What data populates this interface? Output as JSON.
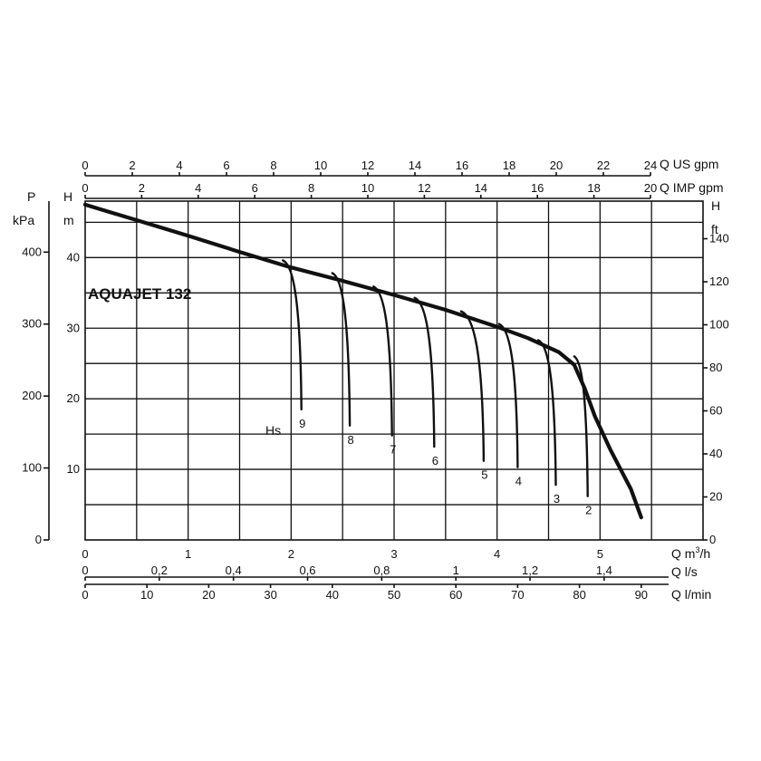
{
  "chart_data": {
    "type": "line",
    "title": "AQUAJET 132",
    "x_axes": [
      {
        "label": "Q m³/h",
        "label_base": "Q m",
        "label_sup": "3",
        "label_tail": "/h",
        "ticks": [
          "0",
          "1",
          "2",
          "3",
          "4",
          "5"
        ],
        "values": [
          0,
          1,
          2,
          3,
          4,
          5
        ]
      },
      {
        "label": "Q l/s",
        "ticks": [
          "0",
          "0,2",
          "0,4",
          "0,6",
          "0,8",
          "1",
          "1,2",
          "1,4"
        ],
        "values": [
          0,
          0.2,
          0.4,
          0.6,
          0.8,
          1,
          1.2,
          1.4
        ]
      },
      {
        "label": "Q l/min",
        "ticks": [
          "0",
          "10",
          "20",
          "30",
          "40",
          "50",
          "60",
          "70",
          "80",
          "90"
        ],
        "values": [
          0,
          10,
          20,
          30,
          40,
          50,
          60,
          70,
          80,
          90
        ]
      }
    ],
    "top_axes": [
      {
        "label": "Q US gpm",
        "ticks": [
          "0",
          "2",
          "4",
          "6",
          "8",
          "10",
          "12",
          "14",
          "16",
          "18",
          "20",
          "22",
          "24"
        ],
        "values": [
          0,
          2,
          4,
          6,
          8,
          10,
          12,
          14,
          16,
          18,
          20,
          22,
          24
        ]
      },
      {
        "label": "Q IMP gpm",
        "ticks": [
          "0",
          "2",
          "4",
          "6",
          "8",
          "10",
          "12",
          "14",
          "16",
          "18",
          "20"
        ],
        "values": [
          0,
          2,
          4,
          6,
          8,
          10,
          12,
          14,
          16,
          18,
          20
        ]
      }
    ],
    "y_axes": [
      {
        "label_top": "P",
        "label_bottom": "kPa",
        "ticks": [
          "0",
          "100",
          "200",
          "300",
          "400"
        ],
        "values": [
          0,
          100,
          200,
          300,
          400
        ]
      },
      {
        "label_top": "H",
        "label_bottom": "m",
        "ticks": [
          "10",
          "20",
          "30",
          "40"
        ],
        "values": [
          10,
          20,
          30,
          40
        ]
      },
      {
        "label_top": "H",
        "label_bottom": "ft",
        "ticks": [
          "0",
          "20",
          "40",
          "60",
          "80",
          "100",
          "120",
          "140"
        ],
        "values": [
          0,
          20,
          40,
          60,
          80,
          100,
          120,
          140
        ]
      }
    ],
    "xlim": [
      0,
      6
    ],
    "ylim": [
      0,
      48
    ],
    "grid": true,
    "head_curve": {
      "x": [
        0,
        0.5,
        1,
        1.5,
        2,
        2.5,
        3,
        3.5,
        4,
        4.3,
        4.6,
        4.75,
        4.85,
        4.95,
        5.1,
        5.3,
        5.4
      ],
      "y": [
        47.5,
        45.3,
        43.1,
        40.8,
        38.6,
        36.7,
        34.7,
        32.6,
        30.2,
        28.6,
        26.6,
        24.8,
        21.5,
        17.5,
        12.8,
        7.2,
        3.2
      ]
    },
    "hs_label": "Hs",
    "suction_curves": [
      {
        "label": "9",
        "x_start": 1.92,
        "y_start": 39.6,
        "x_end": 2.1,
        "y_end": 18.5
      },
      {
        "label": "8",
        "x_start": 2.4,
        "y_start": 37.8,
        "x_end": 2.57,
        "y_end": 16.2
      },
      {
        "label": "7",
        "x_start": 2.8,
        "y_start": 35.9,
        "x_end": 2.98,
        "y_end": 14.8
      },
      {
        "label": "6",
        "x_start": 3.2,
        "y_start": 34.3,
        "x_end": 3.39,
        "y_end": 13.2
      },
      {
        "label": "5",
        "x_start": 3.65,
        "y_start": 32.4,
        "x_end": 3.87,
        "y_end": 11.2
      },
      {
        "label": "4",
        "x_start": 4.02,
        "y_start": 30.6,
        "x_end": 4.2,
        "y_end": 10.3
      },
      {
        "label": "3",
        "x_start": 4.4,
        "y_start": 28.3,
        "x_end": 4.57,
        "y_end": 7.8
      },
      {
        "label": "2",
        "x_start": 4.75,
        "y_start": 26.0,
        "x_end": 4.88,
        "y_end": 6.2
      }
    ]
  }
}
